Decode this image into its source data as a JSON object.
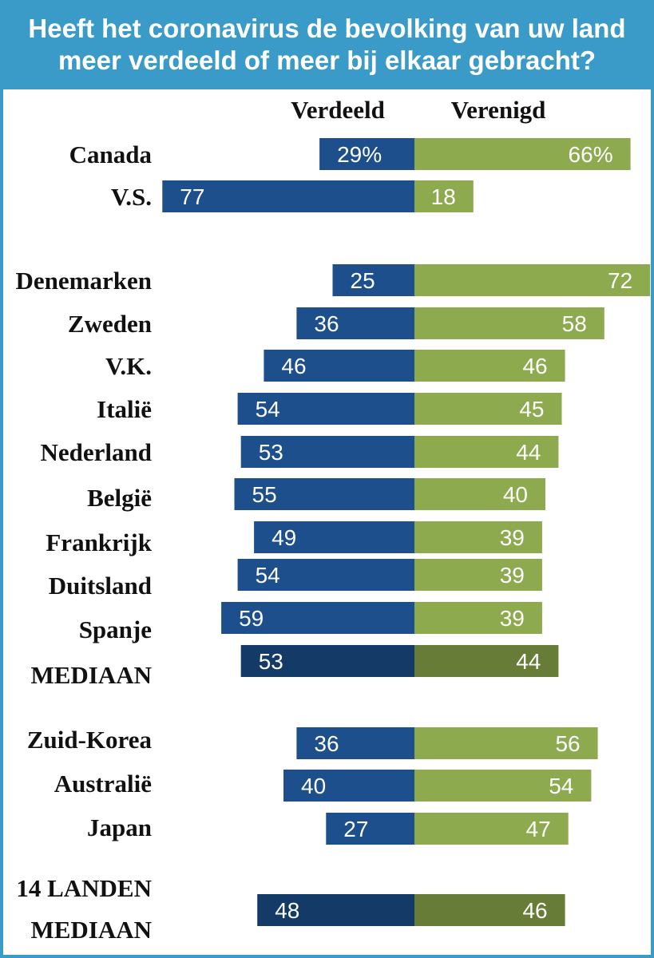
{
  "title_lines": [
    "Heeft het coronavirus de bevolking van uw land",
    "meer verdeeld of meer bij elkaar gebracht?"
  ],
  "colors": {
    "header_bg": "#3a9bc9",
    "divided": "#1d4f8c",
    "united": "#8eaa4e",
    "divided_median": "#143a68",
    "united_median": "#677c36",
    "label_text": "#111111",
    "value_text": "#ffffff"
  },
  "chart_data": {
    "type": "bar",
    "orientation": "horizontal-diverging",
    "series": [
      {
        "name": "Verdeeld",
        "values": [
          29,
          77,
          25,
          36,
          46,
          54,
          53,
          55,
          49,
          54,
          59,
          53,
          36,
          40,
          27,
          48
        ]
      },
      {
        "name": "Verenigd",
        "values": [
          66,
          18,
          72,
          58,
          46,
          45,
          44,
          40,
          39,
          39,
          39,
          44,
          56,
          54,
          47,
          46
        ]
      }
    ],
    "categories": [
      "Canada",
      "V.S.",
      "Denemarken",
      "Zweden",
      "V.K.",
      "Italië",
      "Nederland",
      "België",
      "Frankrijk",
      "Duitsland",
      "Spanje",
      "MEDIAAN",
      "Zuid-Korea",
      "Australië",
      "Japan",
      "14 LANDEN MEDIAAN"
    ],
    "category_lines": [
      [
        "Canada"
      ],
      [
        "V.S."
      ],
      [
        "Denemarken"
      ],
      [
        "Zweden"
      ],
      [
        "V.K."
      ],
      [
        "Italië"
      ],
      [
        "Nederland"
      ],
      [
        "België"
      ],
      [
        "Frankrijk"
      ],
      [
        "Duitsland"
      ],
      [
        "Spanje"
      ],
      [
        "MEDIAAN"
      ],
      [
        "Zuid-Korea"
      ],
      [
        "Australië"
      ],
      [
        "Japan"
      ],
      [
        "14 LANDEN",
        "MEDIAAN"
      ]
    ],
    "value_labels": {
      "divided": [
        "29%",
        "77",
        "25",
        "36",
        "46",
        "54",
        "53",
        "55",
        "49",
        "54",
        "59",
        "53",
        "36",
        "40",
        "27",
        "48"
      ],
      "united": [
        "66%",
        "18",
        "72",
        "58",
        "46",
        "45",
        "44",
        "40",
        "39",
        "39",
        "39",
        "44",
        "56",
        "54",
        "47",
        "46"
      ]
    },
    "median_rows": [
      "MEDIAAN",
      "14 LANDEN MEDIAAN"
    ],
    "unit": "%",
    "grid": false,
    "legend": "column headers above bars"
  }
}
